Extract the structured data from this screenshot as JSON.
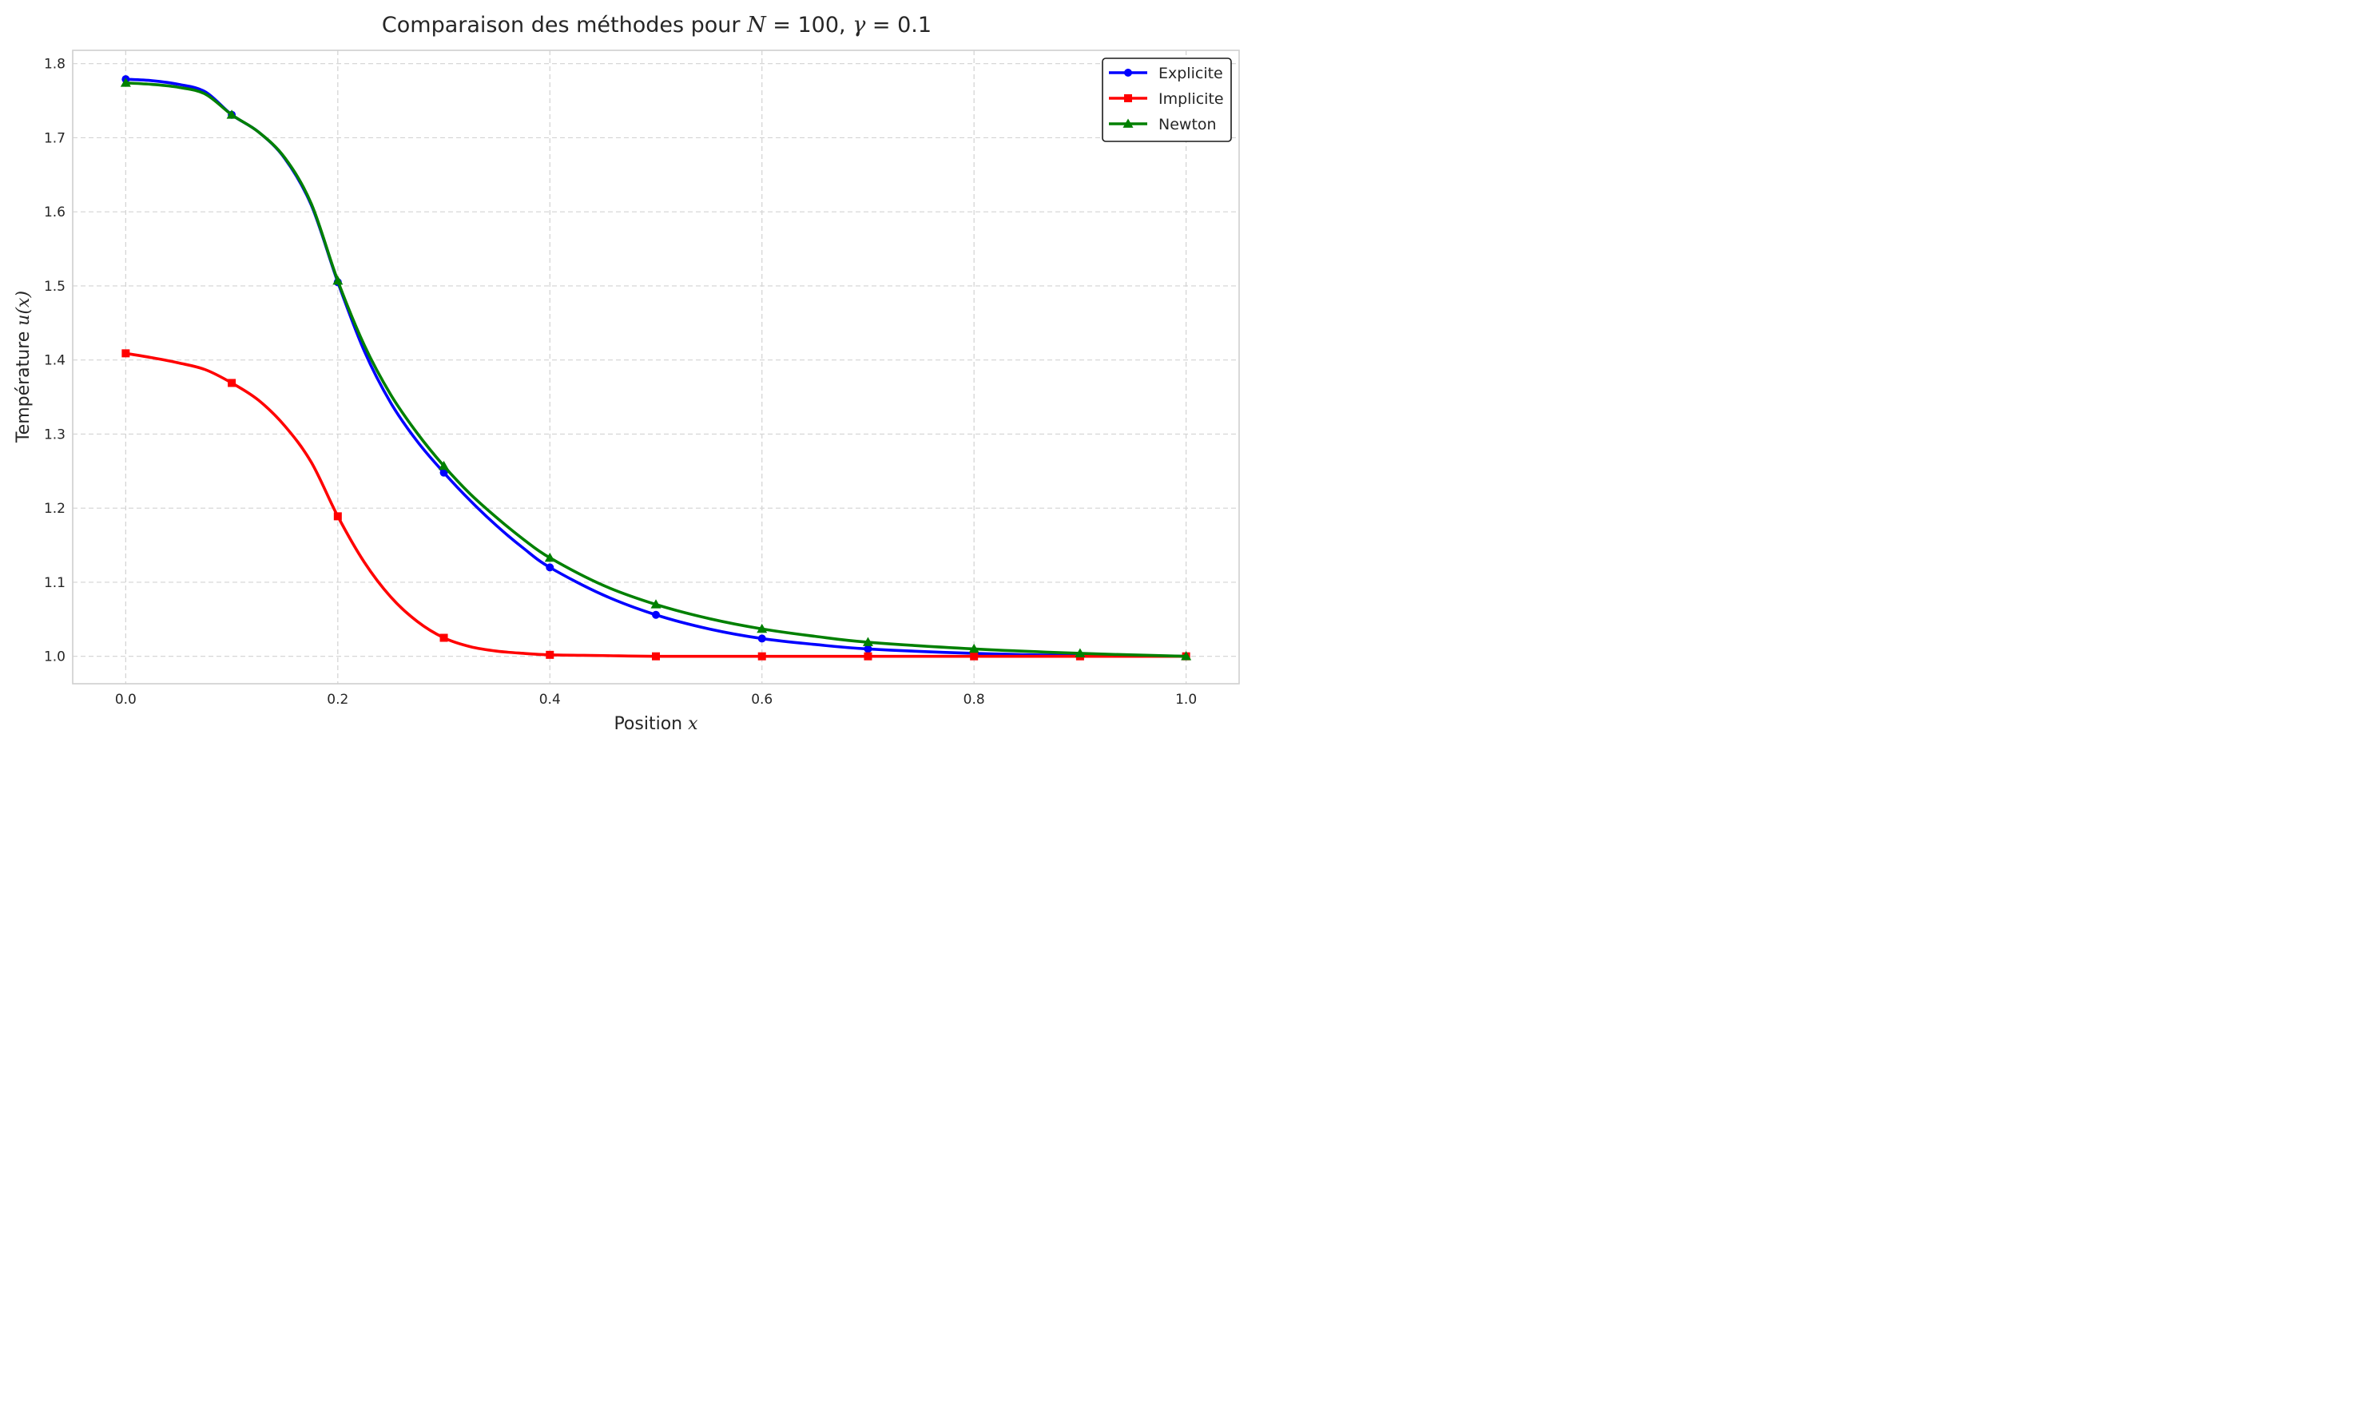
{
  "chart_data": {
    "type": "line",
    "title": "Comparaison des méthodes pour N = 100, γ = 0.1",
    "title_parts": {
      "text": "Comparaison des méthodes pour ",
      "n_symbol": "N",
      "n_value": " = 100, ",
      "gamma_symbol": "γ",
      "gamma_value": " = 0.1"
    },
    "xlabel": "Position x",
    "xlabel_parts": {
      "text": "Position ",
      "symbol": "x"
    },
    "ylabel": "Température u(x)",
    "ylabel_parts": {
      "text": "Température ",
      "symbol": "u(x)"
    },
    "xlim": [
      -0.05,
      1.05
    ],
    "ylim": [
      0.963,
      1.818
    ],
    "x_ticks": [
      0.0,
      0.2,
      0.4,
      0.6,
      0.8,
      1.0
    ],
    "x_tick_labels": [
      "0.0",
      "0.2",
      "0.4",
      "0.6",
      "0.8",
      "1.0"
    ],
    "y_ticks": [
      1.0,
      1.1,
      1.2,
      1.3,
      1.4,
      1.5,
      1.6,
      1.7,
      1.8
    ],
    "y_tick_labels": [
      "1.0",
      "1.1",
      "1.2",
      "1.3",
      "1.4",
      "1.5",
      "1.6",
      "1.7",
      "1.8"
    ],
    "grid": true,
    "legend_position": "top-right",
    "x": [
      0.0,
      0.1,
      0.2,
      0.3,
      0.4,
      0.5,
      0.6,
      0.7,
      0.8,
      0.9,
      1.0
    ],
    "series": [
      {
        "name": "Explicite",
        "color": "#0000ff",
        "marker": "circle",
        "values": [
          1.779,
          1.731,
          1.505,
          1.248,
          1.12,
          1.056,
          1.024,
          1.01,
          1.004,
          1.001,
          1.0
        ],
        "curve": [
          [
            0.0,
            1.779
          ],
          [
            0.025,
            1.777
          ],
          [
            0.05,
            1.772
          ],
          [
            0.075,
            1.762
          ],
          [
            0.1,
            1.731
          ],
          [
            0.125,
            1.708
          ],
          [
            0.15,
            1.672
          ],
          [
            0.175,
            1.609
          ],
          [
            0.2,
            1.505
          ],
          [
            0.225,
            1.412
          ],
          [
            0.25,
            1.342
          ],
          [
            0.275,
            1.29
          ],
          [
            0.3,
            1.248
          ],
          [
            0.325,
            1.21
          ],
          [
            0.35,
            1.176
          ],
          [
            0.375,
            1.146
          ],
          [
            0.4,
            1.12
          ],
          [
            0.45,
            1.083
          ],
          [
            0.5,
            1.056
          ],
          [
            0.55,
            1.037
          ],
          [
            0.6,
            1.024
          ],
          [
            0.65,
            1.016
          ],
          [
            0.7,
            1.01
          ],
          [
            0.8,
            1.004
          ],
          [
            0.9,
            1.001
          ],
          [
            1.0,
            1.0
          ]
        ]
      },
      {
        "name": "Implicite",
        "color": "#ff0000",
        "marker": "square",
        "values": [
          1.409,
          1.369,
          1.189,
          1.025,
          1.002,
          1.0,
          1.0,
          1.0,
          1.0,
          1.0,
          1.0
        ],
        "curve": [
          [
            0.0,
            1.409
          ],
          [
            0.025,
            1.403
          ],
          [
            0.05,
            1.396
          ],
          [
            0.075,
            1.387
          ],
          [
            0.1,
            1.369
          ],
          [
            0.125,
            1.346
          ],
          [
            0.15,
            1.311
          ],
          [
            0.175,
            1.262
          ],
          [
            0.2,
            1.189
          ],
          [
            0.225,
            1.127
          ],
          [
            0.25,
            1.08
          ],
          [
            0.275,
            1.047
          ],
          [
            0.3,
            1.025
          ],
          [
            0.325,
            1.013
          ],
          [
            0.35,
            1.007
          ],
          [
            0.375,
            1.004
          ],
          [
            0.4,
            1.002
          ],
          [
            0.45,
            1.001
          ],
          [
            0.5,
            1.0
          ],
          [
            0.6,
            1.0
          ],
          [
            0.7,
            1.0
          ],
          [
            0.8,
            1.0
          ],
          [
            0.9,
            1.0
          ],
          [
            1.0,
            1.0
          ]
        ]
      },
      {
        "name": "Newton",
        "color": "#008000",
        "marker": "triangle",
        "values": [
          1.774,
          1.731,
          1.507,
          1.257,
          1.133,
          1.07,
          1.037,
          1.019,
          1.01,
          1.004,
          1.0
        ],
        "curve": [
          [
            0.0,
            1.774
          ],
          [
            0.025,
            1.772
          ],
          [
            0.05,
            1.768
          ],
          [
            0.075,
            1.759
          ],
          [
            0.1,
            1.731
          ],
          [
            0.125,
            1.708
          ],
          [
            0.15,
            1.673
          ],
          [
            0.175,
            1.611
          ],
          [
            0.2,
            1.507
          ],
          [
            0.225,
            1.42
          ],
          [
            0.25,
            1.353
          ],
          [
            0.275,
            1.301
          ],
          [
            0.3,
            1.257
          ],
          [
            0.325,
            1.219
          ],
          [
            0.35,
            1.187
          ],
          [
            0.375,
            1.158
          ],
          [
            0.4,
            1.133
          ],
          [
            0.45,
            1.096
          ],
          [
            0.5,
            1.07
          ],
          [
            0.55,
            1.051
          ],
          [
            0.6,
            1.037
          ],
          [
            0.65,
            1.027
          ],
          [
            0.7,
            1.019
          ],
          [
            0.8,
            1.01
          ],
          [
            0.9,
            1.004
          ],
          [
            1.0,
            1.0
          ]
        ]
      }
    ]
  }
}
